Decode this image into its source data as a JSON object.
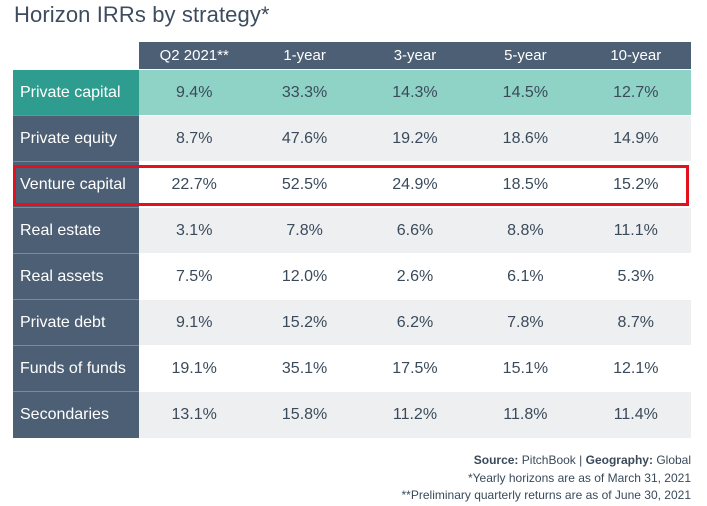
{
  "title": "Horizon IRRs by strategy*",
  "chart_data": {
    "type": "table",
    "title": "Horizon IRRs by strategy*",
    "columns": [
      "Q2 2021**",
      "1-year",
      "3-year",
      "5-year",
      "10-year"
    ],
    "rows": [
      {
        "label": "Private capital",
        "values": [
          "9.4%",
          "33.3%",
          "14.3%",
          "14.5%",
          "12.7%"
        ]
      },
      {
        "label": "Private equity",
        "values": [
          "8.7%",
          "47.6%",
          "19.2%",
          "18.6%",
          "14.9%"
        ]
      },
      {
        "label": "Venture capital",
        "values": [
          "22.7%",
          "52.5%",
          "24.9%",
          "18.5%",
          "15.2%"
        ]
      },
      {
        "label": "Real estate",
        "values": [
          "3.1%",
          "7.8%",
          "6.6%",
          "8.8%",
          "11.1%"
        ]
      },
      {
        "label": "Real assets",
        "values": [
          "7.5%",
          "12.0%",
          "2.6%",
          "6.1%",
          "5.3%"
        ]
      },
      {
        "label": "Private debt",
        "values": [
          "9.1%",
          "15.2%",
          "6.2%",
          "7.8%",
          "8.7%"
        ]
      },
      {
        "label": "Funds of funds",
        "values": [
          "19.1%",
          "35.1%",
          "17.5%",
          "15.1%",
          "12.1%"
        ]
      },
      {
        "label": "Secondaries",
        "values": [
          "13.1%",
          "15.8%",
          "11.2%",
          "11.8%",
          "11.4%"
        ]
      }
    ],
    "highlighted_row": "Private capital",
    "outlined_row": "Venture capital"
  },
  "notes": {
    "source_label": "Source:",
    "source_value": "PitchBook",
    "separator": "|",
    "geography_label": "Geography:",
    "geography_value": "Global",
    "footnote_1": "*Yearly horizons are as of March 31, 2021",
    "footnote_2": "**Preliminary quarterly returns are as of June 30, 2021"
  },
  "colors": {
    "header_bg": "#4d5f74",
    "highlight_label_bg": "#2e9c8e",
    "highlight_cells_bg": "#8fd2c6",
    "stripe_bg": "#eeeff1",
    "callout_border": "#e3101e"
  }
}
